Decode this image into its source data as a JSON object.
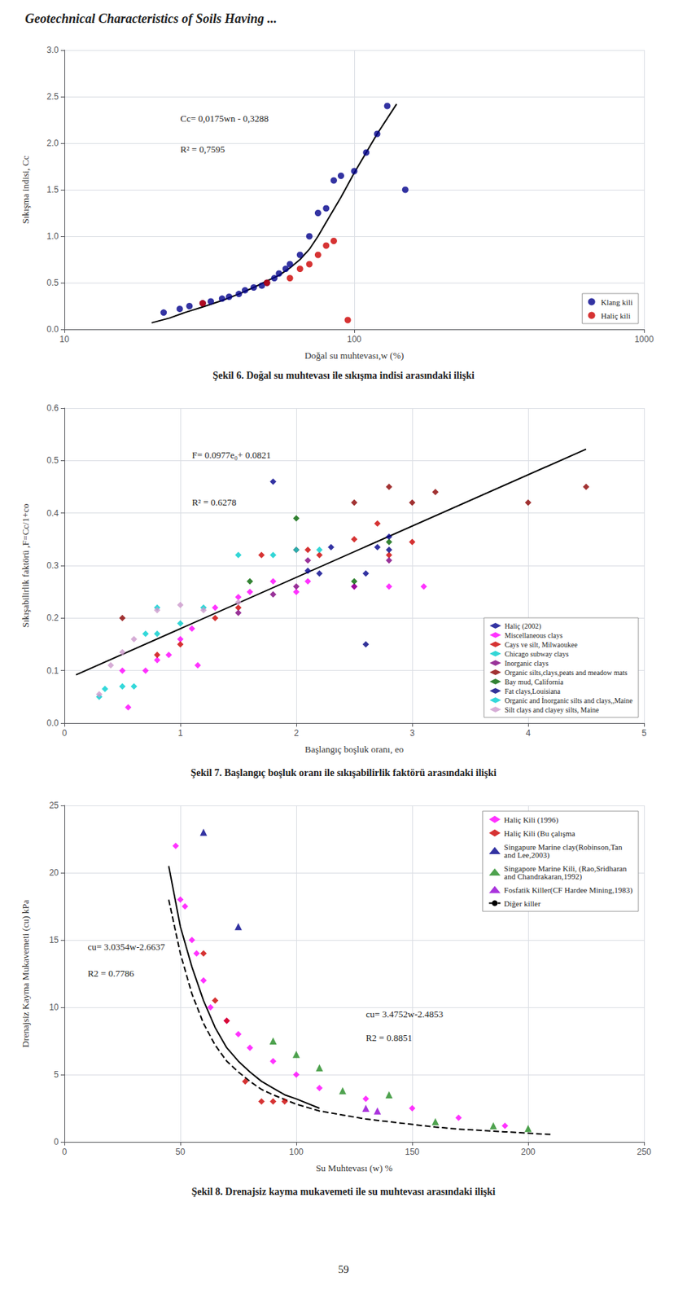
{
  "title": "Geotechnical Characteristics of Soils Having ...",
  "page_number": "59",
  "chart_data": [
    {
      "type": "scatter",
      "title": "Şekil 6. Doğal su muhtevası ile sıkışma indisi arasındaki ilişki",
      "xlabel": "Doğal su muhtevası,w (%)",
      "ylabel": "Sıkışma indisi, Cc",
      "annotations": [
        "Cc= 0,0175wn - 0,3288",
        "R² = 0,7595"
      ],
      "log": "x",
      "xlim": [
        10,
        1000
      ],
      "ylim": [
        0,
        3
      ],
      "xticks": [
        10,
        100,
        1000
      ],
      "yticks": [
        {
          "value": 0,
          "label": "0.0"
        },
        0.5,
        {
          "value": 1,
          "label": "1.0"
        },
        1.5,
        {
          "value": 2,
          "label": "2.0"
        },
        2.5,
        {
          "value": 3,
          "label": "3.0"
        }
      ],
      "grid": true,
      "legend": "lower right",
      "series": [
        {
          "name": "Klang kili",
          "type": "scatter",
          "color": "#00008B",
          "marker": "circle",
          "x": [
            22,
            25,
            27,
            30,
            32,
            35,
            37,
            40,
            42,
            45,
            48,
            50,
            53,
            55,
            58,
            60,
            65,
            70,
            75,
            80,
            85,
            90,
            100,
            110,
            120,
            130,
            150
          ],
          "values": [
            0.18,
            0.22,
            0.25,
            0.28,
            0.3,
            0.33,
            0.35,
            0.38,
            0.42,
            0.45,
            0.47,
            0.5,
            0.55,
            0.6,
            0.65,
            0.7,
            0.8,
            1.0,
            1.25,
            1.3,
            1.6,
            1.65,
            1.7,
            1.9,
            2.1,
            2.4,
            1.5
          ]
        },
        {
          "name": "Haliç kili",
          "type": "scatter",
          "color": "#CC0000",
          "marker": "circle",
          "x": [
            30,
            50,
            60,
            65,
            70,
            75,
            80,
            85,
            95
          ],
          "values": [
            0.28,
            0.5,
            0.55,
            0.65,
            0.7,
            0.8,
            0.9,
            0.95,
            0.1
          ]
        },
        {
          "type": "line",
          "color": "#000000",
          "line_style": "solid",
          "x": [
            20,
            23,
            26,
            30,
            35,
            40,
            45,
            50,
            55,
            60,
            65,
            70,
            75,
            80,
            90,
            100,
            110,
            120,
            140
          ],
          "values": [
            0.07,
            0.12,
            0.18,
            0.24,
            0.31,
            0.38,
            0.45,
            0.52,
            0.58,
            0.66,
            0.75,
            0.86,
            1.0,
            1.15,
            1.42,
            1.68,
            1.9,
            2.1,
            2.42
          ]
        }
      ]
    },
    {
      "type": "scatter",
      "title": "Şekil 7. Başlangıç boşluk oranı ile sıkışabilirlik faktörü arasındaki ilişki",
      "xlabel": "Başlangıç boşluk oranı, eo",
      "ylabel": "Sıkışabilirlik faktörü ,F=Cc/1+co",
      "annotations": [
        "F= 0.0977e₀+ 0.0821",
        "R² = 0.6278"
      ],
      "xlim": [
        0,
        5
      ],
      "ylim": [
        0,
        0.6
      ],
      "xticks": [
        0,
        1,
        2,
        3,
        4,
        5
      ],
      "yticks": [
        {
          "value": 0,
          "label": "0.0"
        },
        0.1,
        0.2,
        0.3,
        0.4,
        0.5,
        0.6
      ],
      "grid": true,
      "legend": "lower right",
      "series": [
        {
          "name": "Haliç (2002)",
          "type": "scatter",
          "color": "#00008B",
          "marker": "diamond",
          "x": [
            1.8,
            2.1,
            2.2,
            2.3,
            2.6,
            2.7,
            2.8
          ],
          "values": [
            0.46,
            0.29,
            0.285,
            0.335,
            0.285,
            0.335,
            0.355
          ]
        },
        {
          "name": "Miscellaneous clays",
          "type": "scatter",
          "color": "#FF00FF",
          "marker": "diamond",
          "x": [
            0.5,
            0.55,
            0.7,
            0.8,
            0.9,
            1.0,
            1.1,
            1.15,
            1.3,
            1.5,
            1.6,
            1.8,
            2.0,
            2.1,
            2.5,
            2.8,
            3.1
          ],
          "values": [
            0.1,
            0.03,
            0.1,
            0.12,
            0.13,
            0.16,
            0.18,
            0.11,
            0.22,
            0.24,
            0.25,
            0.27,
            0.25,
            0.27,
            0.26,
            0.26,
            0.26
          ]
        },
        {
          "name": "Cays ve silt, Milwaoukee",
          "type": "scatter",
          "color": "#CC0000",
          "marker": "diamond",
          "x": [
            0.8,
            1.0,
            1.3,
            1.5,
            1.7,
            2.0,
            2.1,
            2.2,
            2.5,
            2.7,
            2.8,
            3.0
          ],
          "values": [
            0.13,
            0.15,
            0.2,
            0.22,
            0.32,
            0.33,
            0.33,
            0.32,
            0.35,
            0.38,
            0.32,
            0.345
          ]
        },
        {
          "name": "Chicago subway clays",
          "type": "scatter",
          "color": "#00CCCC",
          "marker": "diamond",
          "x": [
            0.8,
            1.0,
            1.2,
            1.5,
            1.8,
            2.0,
            2.2
          ],
          "values": [
            0.17,
            0.19,
            0.22,
            0.32,
            0.32,
            0.33,
            0.33
          ]
        },
        {
          "name": "Inorganic clays",
          "type": "scatter",
          "color": "#800080",
          "marker": "diamond",
          "x": [
            1.5,
            1.8,
            2.0,
            2.1,
            2.5,
            2.8
          ],
          "values": [
            0.21,
            0.245,
            0.26,
            0.31,
            0.26,
            0.31
          ]
        },
        {
          "name": "Organic silts,clays,peats and meadow mats",
          "type": "scatter",
          "color": "#8B0000",
          "marker": "diamond",
          "x": [
            0.5,
            2.5,
            2.8,
            3.0,
            3.2,
            4.0,
            4.5
          ],
          "values": [
            0.2,
            0.42,
            0.45,
            0.42,
            0.44,
            0.42,
            0.45
          ]
        },
        {
          "name": "Bay mud, California",
          "type": "scatter",
          "color": "#006400",
          "marker": "diamond",
          "x": [
            1.6,
            2.0,
            2.5,
            2.8
          ],
          "values": [
            0.27,
            0.39,
            0.27,
            0.345
          ]
        },
        {
          "name": "Fat clays,Louisiana",
          "type": "scatter",
          "color": "#000080",
          "marker": "diamond",
          "x": [
            2.6,
            2.8
          ],
          "values": [
            0.15,
            0.33
          ]
        },
        {
          "name": "Organic and İnorganic silts and clays,,Maine",
          "type": "scatter",
          "color": "#00CED1",
          "marker": "diamond",
          "x": [
            0.3,
            0.35,
            0.5,
            0.6,
            0.7,
            0.8
          ],
          "values": [
            0.05,
            0.065,
            0.07,
            0.07,
            0.17,
            0.22
          ]
        },
        {
          "name": "Silt clays and clayey silts, Maine",
          "type": "scatter",
          "color": "#CC99CC",
          "marker": "diamond",
          "x": [
            0.3,
            0.4,
            0.5,
            0.6,
            0.8,
            1.0,
            1.2,
            1.5
          ],
          "values": [
            0.055,
            0.11,
            0.135,
            0.16,
            0.215,
            0.225,
            0.215,
            0.23
          ]
        },
        {
          "type": "line",
          "color": "#000000",
          "line_style": "solid",
          "x": [
            0.1,
            4.5
          ],
          "values": [
            0.0919,
            0.5218
          ]
        }
      ]
    },
    {
      "type": "scatter",
      "title": "Şekil 8. Drenajsiz kayma mukavemeti ile su muhtevası arasındaki ilişki",
      "xlabel": "Su Muhtevası (w) %",
      "ylabel": "Drenajsiz Kayma Mukavemeti (cu) kPa",
      "annotations": [
        "cu= 3.0354w-2.6637",
        "R2 = 0.7786",
        "cu= 3.4752w-2.4853",
        "R2 = 0.8851"
      ],
      "xlim": [
        0,
        250
      ],
      "ylim": [
        0,
        25
      ],
      "xticks": [
        0,
        50,
        100,
        150,
        200,
        250
      ],
      "yticks": [
        0,
        5,
        10,
        15,
        20,
        25
      ],
      "grid": true,
      "legend": "upper right",
      "series": [
        {
          "name": "Haliç Kili (1996)",
          "type": "scatter",
          "color": "#FF00FF",
          "marker": "diamond",
          "x": [
            48,
            50,
            52,
            55,
            57,
            60,
            63,
            70,
            75,
            80,
            90,
            100,
            110,
            130,
            150,
            170,
            190
          ],
          "values": [
            22,
            18,
            17.5,
            15,
            14,
            12,
            10,
            9,
            8,
            7,
            6,
            5,
            4,
            3.2,
            2.5,
            1.8,
            1.2
          ]
        },
        {
          "name": "Haliç Kili (Bu çalışma",
          "type": "scatter",
          "color": "#CC0000",
          "marker": "diamond",
          "x": [
            60,
            65,
            70,
            78,
            85,
            90,
            95
          ],
          "values": [
            14,
            10.5,
            9,
            4.5,
            3.0,
            3.0,
            3.0
          ]
        },
        {
          "name": "Singapure Marine clay(Robinson,Tan\nand Lee,2003)",
          "type": "scatter",
          "color": "#00008B",
          "marker": "triangle",
          "x": [
            60,
            75
          ],
          "values": [
            23,
            16
          ]
        },
        {
          "name": "Singapore Marine Kili, (Rao,Sridharan\nand Chandrakaran,1992)",
          "type": "scatter",
          "color": "#228B22",
          "marker": "triangle",
          "x": [
            90,
            100,
            110,
            120,
            140,
            160,
            185,
            200
          ],
          "values": [
            7.5,
            6.5,
            5.5,
            3.8,
            3.5,
            1.5,
            1.2,
            1.0
          ]
        },
        {
          "name": "Fosfatik Killer(CF Hardee Mining,1983)",
          "type": "scatter",
          "color": "#9400D3",
          "marker": "triangle",
          "x": [
            130,
            135
          ],
          "values": [
            2.5,
            2.3
          ]
        },
        {
          "type": "line",
          "color": "#000000",
          "line_style": "solid",
          "x": [
            45,
            50,
            55,
            60,
            65,
            70,
            75,
            80,
            85,
            90,
            95,
            100,
            110
          ],
          "values": [
            20.5,
            16,
            13,
            10.5,
            8.5,
            7.0,
            6.0,
            5.2,
            4.5,
            4.0,
            3.5,
            3.2,
            2.5
          ]
        },
        {
          "name": "Diğer killer",
          "type": "line",
          "color": "#000000",
          "line_style": "dashed",
          "x": [
            45,
            50,
            55,
            60,
            65,
            70,
            75,
            80,
            85,
            90,
            100,
            110,
            120,
            130,
            140,
            150,
            160,
            170,
            180,
            190,
            200,
            210
          ],
          "values": [
            18,
            14,
            11,
            8.8,
            7.2,
            6.0,
            5.2,
            4.5,
            3.9,
            3.5,
            2.8,
            2.3,
            2.0,
            1.7,
            1.5,
            1.3,
            1.1,
            0.95,
            0.85,
            0.75,
            0.65,
            0.55
          ]
        }
      ]
    }
  ]
}
